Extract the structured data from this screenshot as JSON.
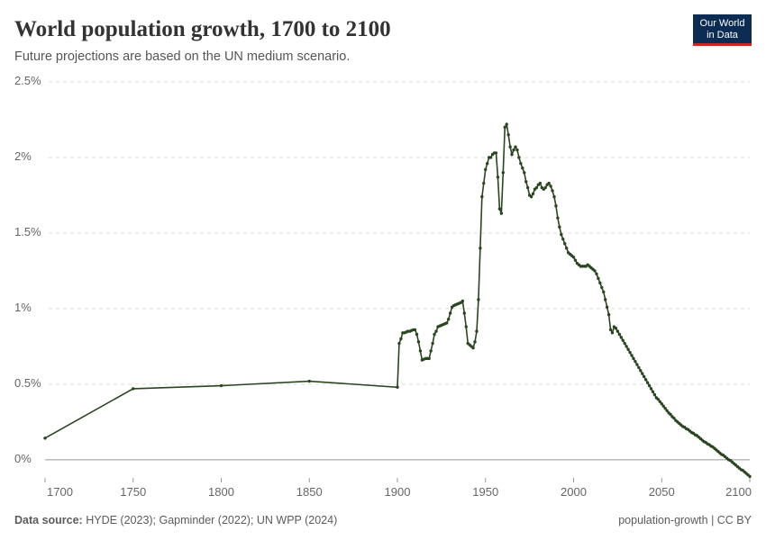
{
  "chart_data": {
    "type": "line",
    "title": "World population growth, 1700 to 2100",
    "subtitle": "Future projections are based on the UN medium scenario.",
    "logo": [
      "Our World",
      "in Data"
    ],
    "source_label": "Data source:",
    "source": "HYDE (2023); Gapminder (2022); UN WPP (2024)",
    "license": "population-growth | CC BY",
    "xlim": [
      1700,
      2100
    ],
    "xticks": [
      1700,
      1750,
      1800,
      1850,
      1900,
      1950,
      2000,
      2050,
      2100
    ],
    "ylim": [
      -0.12,
      2.5
    ],
    "yticks": [
      {
        "value": 0,
        "label": "0%"
      },
      {
        "value": 0.5,
        "label": "0.5%"
      },
      {
        "value": 1,
        "label": "1%"
      },
      {
        "value": 1.5,
        "label": "1.5%"
      },
      {
        "value": 2,
        "label": "2%"
      },
      {
        "value": 2.5,
        "label": "2.5%"
      }
    ],
    "grid": true,
    "x": [
      1700,
      1750,
      1800,
      1850,
      1900,
      1901,
      1902,
      1903,
      1904,
      1905,
      1906,
      1907,
      1908,
      1909,
      1910,
      1911,
      1912,
      1913,
      1914,
      1915,
      1916,
      1917,
      1918,
      1919,
      1920,
      1921,
      1922,
      1923,
      1924,
      1925,
      1926,
      1927,
      1928,
      1929,
      1930,
      1931,
      1932,
      1933,
      1934,
      1935,
      1936,
      1937,
      1938,
      1939,
      1940,
      1941,
      1942,
      1943,
      1944,
      1945,
      1946,
      1947,
      1948,
      1949,
      1950,
      1951,
      1952,
      1953,
      1954,
      1955,
      1956,
      1957,
      1958,
      1959,
      1960,
      1961,
      1962,
      1963,
      1964,
      1965,
      1966,
      1967,
      1968,
      1969,
      1970,
      1971,
      1972,
      1973,
      1974,
      1975,
      1976,
      1977,
      1978,
      1979,
      1980,
      1981,
      1982,
      1983,
      1984,
      1985,
      1986,
      1987,
      1988,
      1989,
      1990,
      1991,
      1992,
      1993,
      1994,
      1995,
      1996,
      1997,
      1998,
      1999,
      2000,
      2001,
      2002,
      2003,
      2004,
      2005,
      2006,
      2007,
      2008,
      2009,
      2010,
      2011,
      2012,
      2013,
      2014,
      2015,
      2016,
      2017,
      2018,
      2019,
      2020,
      2021,
      2022,
      2023,
      2024,
      2025,
      2026,
      2027,
      2028,
      2029,
      2030,
      2031,
      2032,
      2033,
      2034,
      2035,
      2036,
      2037,
      2038,
      2039,
      2040,
      2041,
      2042,
      2043,
      2044,
      2045,
      2046,
      2047,
      2048,
      2049,
      2050,
      2051,
      2052,
      2053,
      2054,
      2055,
      2056,
      2057,
      2058,
      2059,
      2060,
      2061,
      2062,
      2063,
      2064,
      2065,
      2066,
      2067,
      2068,
      2069,
      2070,
      2071,
      2072,
      2073,
      2074,
      2075,
      2076,
      2077,
      2078,
      2079,
      2080,
      2081,
      2082,
      2083,
      2084,
      2085,
      2086,
      2087,
      2088,
      2089,
      2090,
      2091,
      2092,
      2093,
      2094,
      2095,
      2096,
      2097,
      2098,
      2099,
      2100
    ],
    "series": [
      {
        "name": "World",
        "color": "#2a4620",
        "values": [
          0.143,
          0.47,
          0.49,
          0.52,
          0.48,
          0.77,
          0.8,
          0.84,
          0.84,
          0.845,
          0.85,
          0.85,
          0.855,
          0.86,
          0.86,
          0.83,
          0.78,
          0.72,
          0.66,
          0.665,
          0.67,
          0.67,
          0.67,
          0.72,
          0.77,
          0.83,
          0.85,
          0.88,
          0.885,
          0.89,
          0.895,
          0.9,
          0.905,
          0.93,
          0.97,
          1.01,
          1.02,
          1.025,
          1.03,
          1.035,
          1.04,
          1.05,
          0.97,
          0.88,
          0.77,
          0.76,
          0.75,
          0.74,
          0.78,
          0.85,
          1.06,
          1.4,
          1.74,
          1.83,
          1.92,
          1.96,
          2.0,
          2.0,
          2.02,
          2.03,
          2.03,
          1.87,
          1.66,
          1.63,
          1.9,
          2.2,
          2.22,
          2.15,
          2.07,
          2.02,
          2.05,
          2.07,
          2.05,
          2.0,
          1.96,
          1.93,
          1.9,
          1.84,
          1.8,
          1.75,
          1.74,
          1.76,
          1.79,
          1.8,
          1.82,
          1.83,
          1.8,
          1.79,
          1.8,
          1.82,
          1.83,
          1.81,
          1.78,
          1.74,
          1.68,
          1.6,
          1.54,
          1.49,
          1.46,
          1.43,
          1.4,
          1.37,
          1.36,
          1.35,
          1.34,
          1.32,
          1.3,
          1.29,
          1.28,
          1.28,
          1.28,
          1.28,
          1.29,
          1.28,
          1.27,
          1.26,
          1.25,
          1.23,
          1.2,
          1.17,
          1.14,
          1.11,
          1.06,
          1.01,
          0.96,
          0.86,
          0.84,
          0.88,
          0.87,
          0.85,
          0.83,
          0.81,
          0.79,
          0.77,
          0.75,
          0.73,
          0.71,
          0.69,
          0.67,
          0.65,
          0.63,
          0.61,
          0.59,
          0.57,
          0.55,
          0.53,
          0.51,
          0.49,
          0.47,
          0.45,
          0.43,
          0.41,
          0.4,
          0.385,
          0.37,
          0.355,
          0.34,
          0.325,
          0.31,
          0.3,
          0.285,
          0.275,
          0.26,
          0.25,
          0.24,
          0.23,
          0.22,
          0.215,
          0.205,
          0.2,
          0.19,
          0.18,
          0.175,
          0.165,
          0.16,
          0.15,
          0.14,
          0.13,
          0.12,
          0.115,
          0.105,
          0.1,
          0.09,
          0.085,
          0.075,
          0.065,
          0.055,
          0.045,
          0.035,
          0.03,
          0.02,
          0.01,
          0.0,
          -0.005,
          -0.015,
          -0.025,
          -0.035,
          -0.045,
          -0.055,
          -0.065,
          -0.07,
          -0.08,
          -0.09,
          -0.1,
          -0.11
        ]
      }
    ]
  }
}
